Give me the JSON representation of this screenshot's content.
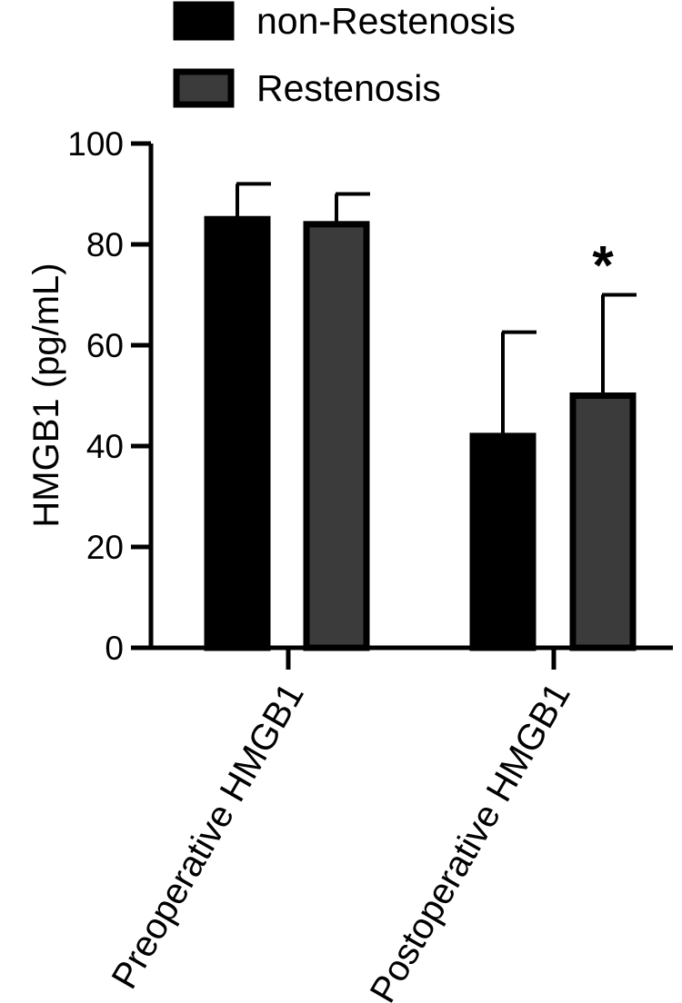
{
  "chart_data": {
    "type": "bar",
    "categories": [
      "Preoperative HMGB1",
      "Postoperative HMGB1"
    ],
    "series": [
      {
        "name": "non-Restenosis",
        "values": [
          85,
          42
        ],
        "errors": [
          7,
          20.6
        ],
        "color": "#000000"
      },
      {
        "name": "Restenosis",
        "values": [
          84,
          50
        ],
        "errors": [
          6,
          20
        ],
        "color": "#3b3b3b"
      }
    ],
    "ylabel": "HMGB1 (pg/mL)",
    "xlabel": "",
    "ylim": [
      0,
      100
    ],
    "yticks": [
      0,
      20,
      40,
      60,
      80,
      100
    ],
    "legend": "top",
    "grid": false,
    "annotations": [
      {
        "text": "*",
        "series": 1,
        "category": 1
      }
    ]
  }
}
